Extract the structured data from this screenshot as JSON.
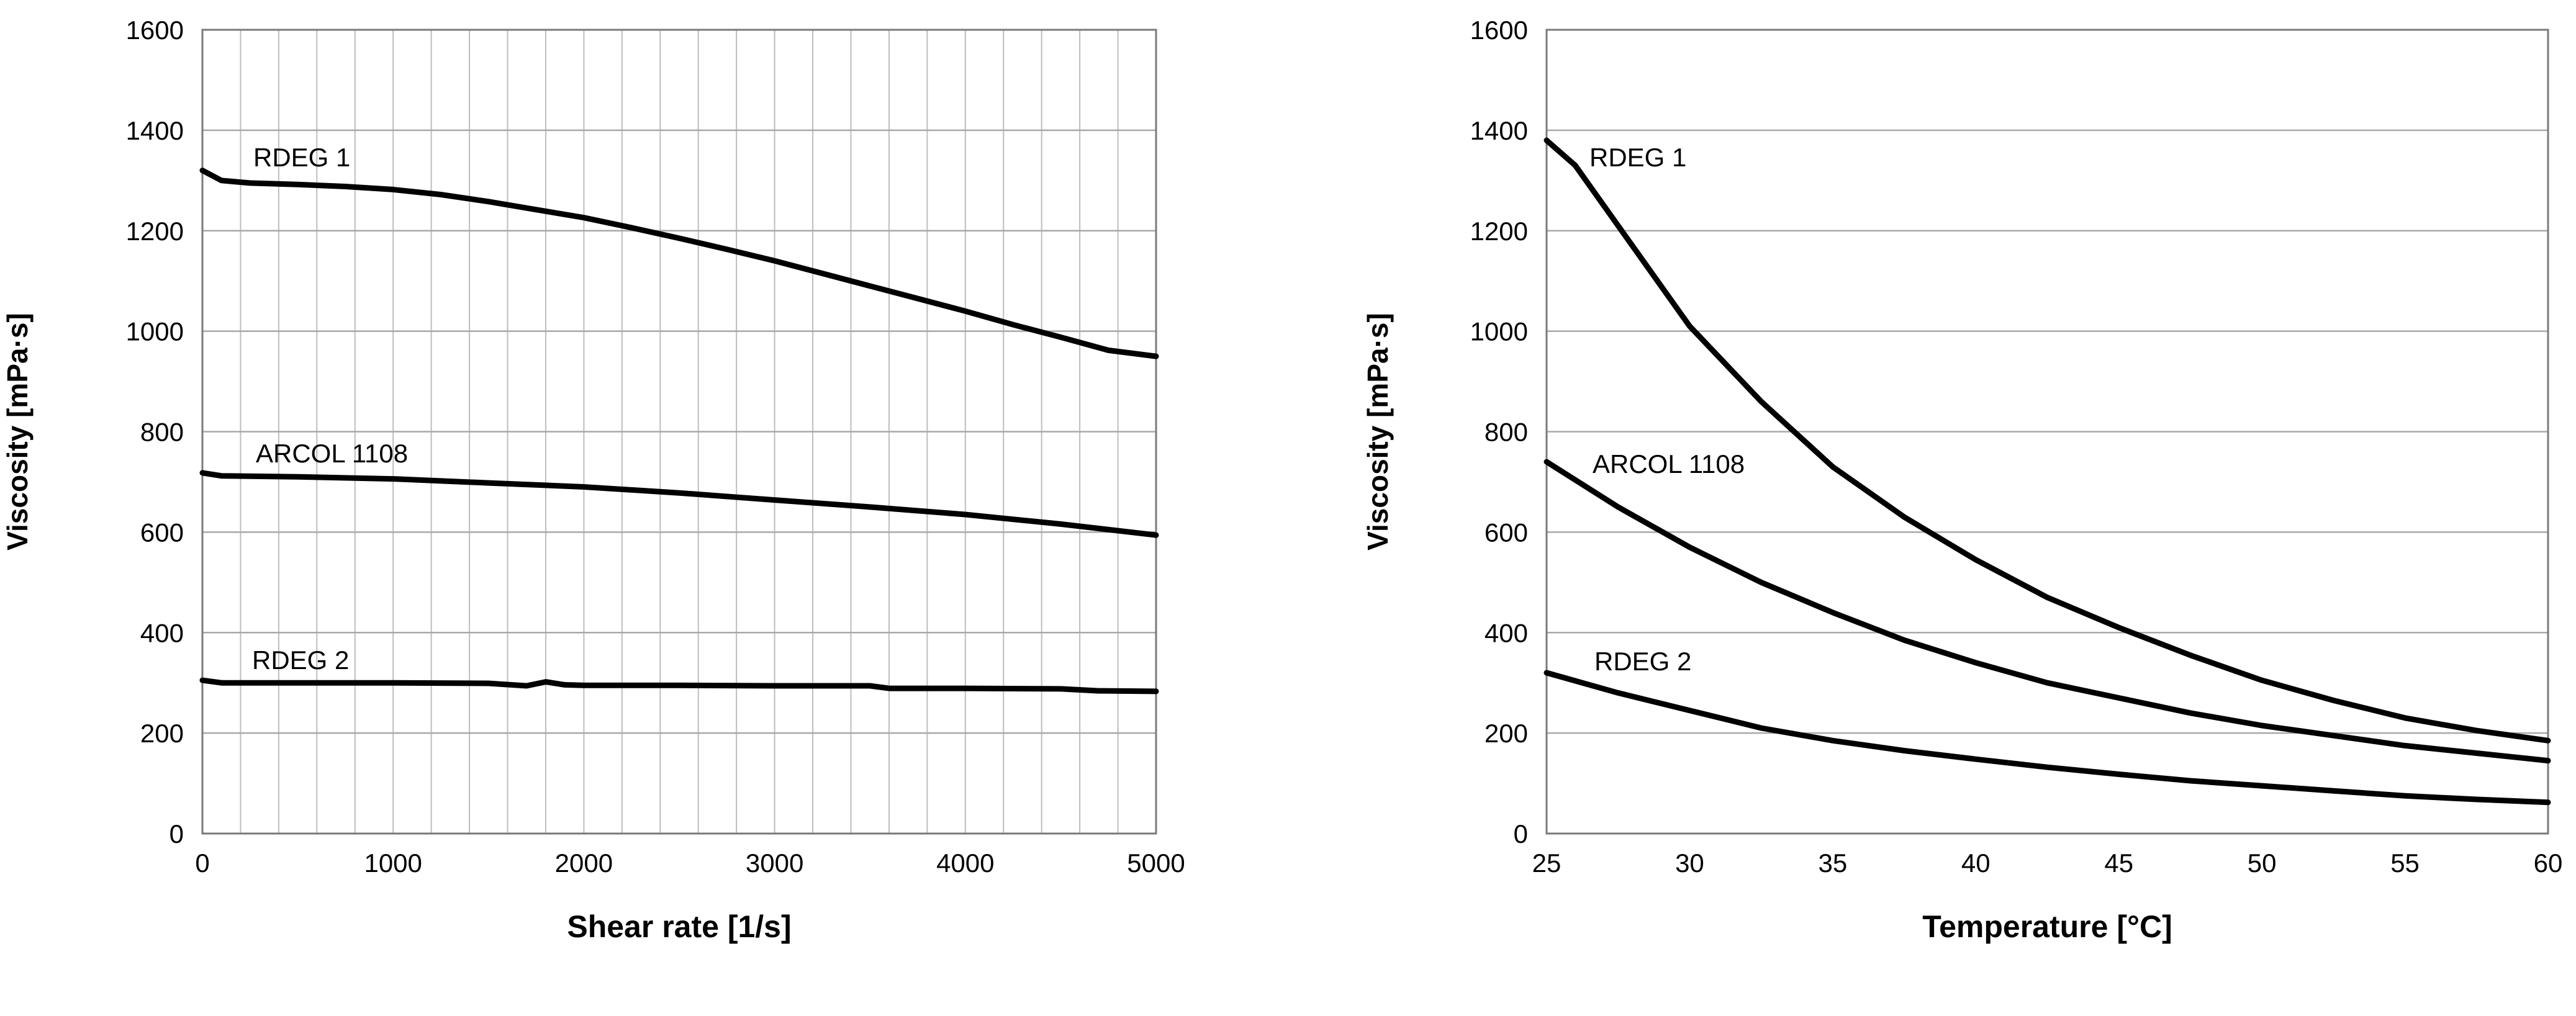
{
  "chart_data": [
    {
      "type": "line",
      "title": "",
      "xlabel": "Shear rate [1/s]",
      "ylabel": "Viscosity [mPa·s]",
      "xlim": [
        0,
        5000
      ],
      "ylim": [
        0,
        1600
      ],
      "x_ticks": [
        "0",
        "1000",
        "2000",
        "3000",
        "4000",
        "5000"
      ],
      "y_ticks": [
        "0",
        "200",
        "400",
        "600",
        "800",
        "1000",
        "1200",
        "1400",
        "1600"
      ],
      "grid": "horizontal and vertical",
      "legend": "inline labels",
      "series": [
        {
          "name": "RDEG 1",
          "x": [
            0,
            100,
            250,
            500,
            750,
            1000,
            1250,
            1500,
            1750,
            2000,
            2250,
            2500,
            2750,
            3000,
            3250,
            3500,
            3750,
            4000,
            4250,
            4500,
            4750,
            5000
          ],
          "y": [
            1320,
            1300,
            1295,
            1292,
            1288,
            1282,
            1272,
            1258,
            1242,
            1226,
            1206,
            1185,
            1163,
            1140,
            1115,
            1090,
            1065,
            1040,
            1013,
            988,
            962,
            950
          ]
        },
        {
          "name": "ARCOL 1108",
          "x": [
            0,
            100,
            500,
            1000,
            1500,
            2000,
            2500,
            3000,
            3500,
            4000,
            4500,
            5000
          ],
          "y": [
            718,
            712,
            710,
            706,
            698,
            690,
            678,
            664,
            650,
            635,
            616,
            594
          ]
        },
        {
          "name": "RDEG 2",
          "x": [
            0,
            100,
            500,
            1000,
            1500,
            1700,
            1800,
            1900,
            2000,
            2500,
            3000,
            3500,
            3600,
            4000,
            4500,
            4700,
            5000
          ],
          "y": [
            305,
            300,
            300,
            300,
            299,
            294,
            302,
            296,
            295,
            295,
            294,
            294,
            289,
            289,
            288,
            284,
            283
          ]
        }
      ],
      "line_color": "#000000"
    },
    {
      "type": "line",
      "title": "",
      "xlabel": "Temperature [°C]",
      "ylabel": "Viscosity [mPa·s]",
      "xlim": [
        25,
        60
      ],
      "ylim": [
        0,
        1600
      ],
      "x_ticks": [
        "25",
        "30",
        "35",
        "40",
        "45",
        "50",
        "55",
        "60"
      ],
      "y_ticks": [
        "0",
        "200",
        "400",
        "600",
        "800",
        "1000",
        "1200",
        "1400",
        "1600"
      ],
      "grid": "horizontal",
      "legend": "inline labels",
      "series": [
        {
          "name": "RDEG 1",
          "x": [
            25,
            26,
            27.5,
            30,
            32.5,
            35,
            37.5,
            40,
            42.5,
            45,
            47.5,
            50,
            52.5,
            55,
            57.5,
            60
          ],
          "y": [
            1380,
            1330,
            1210,
            1010,
            860,
            730,
            630,
            545,
            470,
            410,
            355,
            305,
            265,
            230,
            205,
            185
          ]
        },
        {
          "name": "ARCOL 1108",
          "x": [
            25,
            27.5,
            30,
            32.5,
            35,
            37.5,
            40,
            42.5,
            45,
            47.5,
            50,
            52.5,
            55,
            57.5,
            60
          ],
          "y": [
            740,
            650,
            570,
            500,
            440,
            385,
            340,
            300,
            270,
            240,
            215,
            195,
            175,
            160,
            145
          ]
        },
        {
          "name": "RDEG 2",
          "x": [
            25,
            27.5,
            30,
            32.5,
            35,
            37.5,
            40,
            42.5,
            45,
            47.5,
            50,
            52.5,
            55,
            57.5,
            60
          ],
          "y": [
            320,
            280,
            245,
            210,
            185,
            165,
            148,
            132,
            118,
            105,
            95,
            85,
            75,
            68,
            62
          ]
        }
      ],
      "line_color": "#000000"
    }
  ]
}
